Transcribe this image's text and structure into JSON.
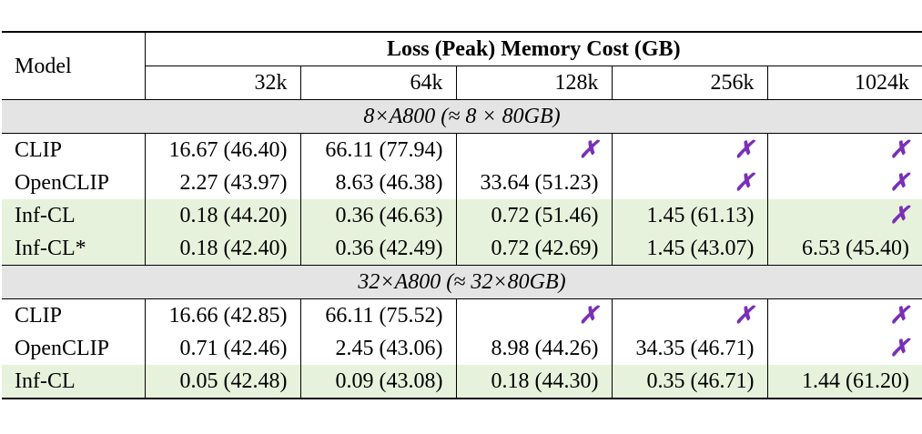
{
  "header": {
    "model_label": "Model",
    "title": "Loss (Peak) Memory Cost (GB)",
    "columns": [
      "32k",
      "64k",
      "128k",
      "256k",
      "1024k"
    ]
  },
  "cross_symbol": "✗",
  "groups": [
    {
      "label": "8×A800 (≈ 8 × 80GB)",
      "rows": [
        {
          "model": "CLIP",
          "values": [
            "16.67 (46.40)",
            "66.11 (77.94)",
            "✗",
            "✗",
            "✗"
          ]
        },
        {
          "model": "OpenCLIP",
          "values": [
            "2.27 (43.97)",
            "8.63 (46.38)",
            "33.64 (51.23)",
            "✗",
            "✗"
          ]
        },
        {
          "model": "Inf-CL",
          "values": [
            "0.18 (44.20)",
            "0.36 (46.63)",
            "0.72 (51.46)",
            "1.45 (61.13)",
            "✗"
          ]
        },
        {
          "model": "Inf-CL*",
          "values": [
            "0.18 (42.40)",
            "0.36 (42.49)",
            "0.72 (42.69)",
            "1.45 (43.07)",
            "6.53 (45.40)"
          ]
        }
      ]
    },
    {
      "label": "32×A800 (≈ 32×80GB)",
      "rows": [
        {
          "model": "CLIP",
          "values": [
            "16.66 (42.85)",
            "66.11 (75.52)",
            "✗",
            "✗",
            "✗"
          ]
        },
        {
          "model": "OpenCLIP",
          "values": [
            "0.71 (42.46)",
            "2.45 (43.06)",
            "8.98 (44.26)",
            "34.35 (46.71)",
            "✗"
          ]
        },
        {
          "model": "Inf-CL",
          "values": [
            "0.05 (42.48)",
            "0.09 (43.08)",
            "0.18 (44.30)",
            "0.35 (46.71)",
            "1.44 (61.20)"
          ]
        }
      ]
    }
  ],
  "colors": {
    "group_bg": "#e4e4e4",
    "highlight_bg": "#e7f2dc",
    "cross": "#7a2fb8"
  }
}
